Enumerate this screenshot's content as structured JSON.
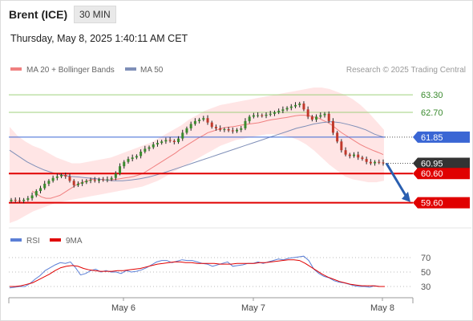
{
  "header": {
    "instrument": "Brent (ICE)",
    "timeframe": "30 MIN",
    "datetime": "Thursday, May 8, 2025 1:40:11 AM CET"
  },
  "legend": {
    "ma20": "MA 20 + Bollinger Bands",
    "ma50": "MA 50",
    "credit": "Research © 2025 Trading Central"
  },
  "colors": {
    "up": "#3a8a2e",
    "down": "#c0392b",
    "ma20": "#f08080",
    "ma50": "#7f8fb8",
    "band": "#ffe1e1",
    "resistance": "#9fd07d",
    "pivot": "#3a66d4",
    "support": "#e00000",
    "rsi": "#5b7fd6",
    "rsi_ma": "#e00000",
    "last": "#333333",
    "arrow": "#2a5fb0"
  },
  "chart_data": [
    {
      "type": "candlestick",
      "title": "Brent (ICE)",
      "ylim": [
        58.9,
        63.8
      ],
      "x_ticks": [
        "May 6",
        "May 7",
        "May 8"
      ],
      "levels": [
        {
          "value": 63.3,
          "label": "63.30",
          "kind": "resistance"
        },
        {
          "value": 62.7,
          "label": "62.70",
          "kind": "resistance"
        },
        {
          "value": 61.85,
          "label": "61.85",
          "kind": "pivot"
        },
        {
          "value": 60.95,
          "label": "60.95",
          "kind": "last"
        },
        {
          "value": 60.6,
          "label": "60.60",
          "kind": "support"
        },
        {
          "value": 59.6,
          "label": "59.60",
          "kind": "support"
        }
      ],
      "close": [
        59.7,
        59.68,
        59.66,
        59.7,
        59.75,
        59.85,
        60.0,
        60.1,
        60.25,
        60.35,
        60.45,
        60.5,
        60.55,
        60.5,
        60.35,
        60.2,
        60.25,
        60.3,
        60.35,
        60.38,
        60.35,
        60.4,
        60.38,
        60.4,
        60.45,
        60.6,
        60.85,
        61.0,
        61.1,
        61.15,
        61.2,
        61.35,
        61.45,
        61.5,
        61.6,
        61.65,
        61.7,
        61.75,
        61.72,
        61.68,
        61.8,
        62.0,
        62.15,
        62.3,
        62.4,
        62.45,
        62.5,
        62.35,
        62.2,
        62.15,
        62.1,
        62.12,
        62.08,
        62.05,
        62.1,
        62.15,
        62.4,
        62.55,
        62.6,
        62.6,
        62.58,
        62.62,
        62.65,
        62.7,
        62.75,
        62.8,
        62.85,
        62.9,
        62.95,
        63.0,
        62.8,
        62.55,
        62.45,
        62.55,
        62.6,
        62.65,
        62.4,
        62.0,
        61.7,
        61.4,
        61.25,
        61.2,
        61.25,
        61.15,
        61.1,
        61.0,
        60.95,
        61.0,
        60.98,
        60.95
      ],
      "ma20": [
        60.0,
        59.9,
        59.8,
        59.75,
        59.75,
        59.8,
        59.85,
        59.95,
        60.05,
        60.15,
        60.25,
        60.3,
        60.35,
        60.4,
        60.42,
        60.4,
        60.38,
        60.38,
        60.4,
        60.42,
        60.45,
        60.47,
        60.5,
        60.55,
        60.6,
        60.7,
        60.8,
        60.9,
        61.0,
        61.1,
        61.2,
        61.3,
        61.42,
        61.52,
        61.62,
        61.72,
        61.82,
        61.9,
        62.0,
        62.05,
        62.1,
        62.15,
        62.18,
        62.2,
        62.22,
        62.25,
        62.28,
        62.3,
        62.32,
        62.34,
        62.38,
        62.42,
        62.45,
        62.47,
        62.5,
        62.52,
        62.55,
        62.58,
        62.6,
        62.6,
        62.58,
        62.54,
        62.5,
        62.42,
        62.35,
        62.25,
        62.12,
        62.0,
        61.9,
        61.8,
        61.7,
        61.6,
        61.52,
        61.45,
        61.38,
        61.32,
        61.25
      ],
      "ma50": [
        61.4,
        61.2,
        61.0,
        60.85,
        60.72,
        60.62,
        60.55,
        60.5,
        60.48,
        60.45,
        60.42,
        60.38,
        60.35,
        60.35,
        60.38,
        60.42,
        60.48,
        60.56,
        60.65,
        60.75,
        60.85,
        60.95,
        61.05,
        61.15,
        61.25,
        61.35,
        61.45,
        61.55,
        61.65,
        61.75,
        61.85,
        61.95,
        62.05,
        62.15,
        62.22,
        62.3,
        62.35,
        62.38,
        62.35,
        62.28,
        62.2,
        62.1,
        61.95,
        61.85
      ],
      "bb_upper": [
        62.2,
        61.9,
        61.7,
        61.55,
        61.45,
        61.3,
        61.15,
        61.05,
        60.95,
        60.95,
        61.0,
        61.05,
        61.1,
        61.15,
        61.25,
        61.35,
        61.45,
        61.55,
        61.65,
        61.8,
        61.95,
        62.1,
        62.25,
        62.45,
        62.6,
        62.75,
        62.85,
        62.95,
        63.0,
        63.05,
        63.1,
        63.15,
        63.2,
        63.25,
        63.3,
        63.35,
        63.4,
        63.45,
        63.5,
        63.55,
        63.55,
        63.5,
        63.4,
        63.3,
        63.15,
        62.95,
        62.7,
        62.4,
        62.1
      ],
      "bb_lower": [
        58.9,
        59.0,
        59.15,
        59.3,
        59.4,
        59.5,
        59.6,
        59.65,
        59.7,
        59.75,
        59.8,
        59.85,
        59.9,
        59.95,
        60.0,
        60.05,
        60.1,
        60.15,
        60.25,
        60.35,
        60.5,
        60.65,
        60.8,
        60.95,
        61.1,
        61.25,
        61.4,
        61.55,
        61.65,
        61.75,
        61.8,
        61.85,
        61.9,
        61.95,
        61.95,
        61.9,
        61.85,
        61.75,
        61.6,
        61.4,
        61.15,
        60.9,
        60.7,
        60.5,
        60.4,
        60.35,
        60.3,
        60.3,
        60.35
      ]
    },
    {
      "type": "line",
      "title": "RSI",
      "ylim": [
        20,
        80
      ],
      "y_ticks": [
        70,
        50,
        30
      ],
      "series": [
        {
          "name": "RSI",
          "values": [
            28,
            29,
            30,
            30,
            34,
            40,
            45,
            52,
            56,
            60,
            63,
            62,
            64,
            56,
            46,
            48,
            52,
            54,
            50,
            52,
            50,
            50,
            48,
            52,
            50,
            51,
            53,
            56,
            60,
            64,
            66,
            66,
            63,
            65,
            67,
            66,
            66,
            64,
            62,
            61,
            58,
            60,
            62,
            64,
            58,
            59,
            60,
            62,
            62,
            64,
            62,
            64,
            66,
            68,
            67,
            69,
            70,
            71,
            72,
            66,
            54,
            48,
            44,
            42,
            38,
            36,
            35,
            33,
            31,
            30,
            30,
            29,
            31,
            30,
            30
          ]
        },
        {
          "name": "9MA",
          "values": [
            30,
            30,
            31,
            33,
            35,
            39,
            43,
            47,
            52,
            56,
            58,
            59,
            58,
            55,
            53,
            52,
            51,
            51,
            51,
            52,
            52,
            53,
            54,
            55,
            57,
            59,
            61,
            62,
            63,
            64,
            64,
            63,
            63,
            62,
            62,
            62,
            62,
            61,
            61,
            61,
            62,
            62,
            62,
            62,
            63,
            63,
            64,
            65,
            66,
            67,
            67,
            66,
            62,
            57,
            52,
            47,
            43,
            40,
            37,
            35,
            33,
            32,
            31,
            31,
            31,
            30,
            30
          ]
        }
      ]
    }
  ]
}
